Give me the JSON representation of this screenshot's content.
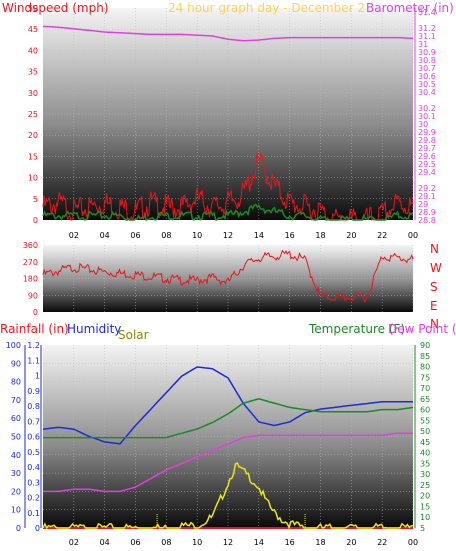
{
  "colors": {
    "windspeed": "#e8161c",
    "barometer": "#e040e0",
    "title": "#ffd34a",
    "rain": "#1b2bd6",
    "humidity": "#1b2bd6",
    "solar": "#e8e812",
    "temperature": "#1a8a22",
    "dewpoint": "#e040e0",
    "direction": "#e8161c",
    "gust": "#1a8a22",
    "tick": "#000000"
  },
  "chart_data": [
    {
      "type": "line",
      "title": "24 hour graph day - December 2",
      "labels": {
        "left": "Windspeed (mph)",
        "right": "Barometer (in)"
      },
      "x_tick_labels": [
        "02",
        "04",
        "06",
        "08",
        "10",
        "12",
        "14",
        "16",
        "18",
        "20",
        "22",
        "00"
      ],
      "left_axis": {
        "ylim": [
          0,
          50
        ],
        "ticks": [
          "0",
          "5",
          "10",
          "15",
          "20",
          "25",
          "30",
          "35",
          "40",
          "45",
          "50"
        ]
      },
      "right_axis": {
        "ylim": [
          28.8,
          31.45
        ],
        "ticks": [
          "28.8",
          "28.9",
          "29",
          "29.1",
          "29.2",
          "29.4",
          "29.5",
          "29.6",
          "29.7",
          "29.8",
          "29.9",
          "30",
          "30.1",
          "30.2",
          "30.4",
          "30.5",
          "30.6",
          "30.7",
          "30.8",
          "30.9",
          "31",
          "31.1",
          "31.2",
          "31.4"
        ]
      },
      "series": [
        {
          "role": "barometer",
          "axis": "right",
          "x": [
            0,
            1,
            2,
            3,
            4,
            5,
            6,
            7,
            8,
            9,
            10,
            11,
            12,
            13,
            14,
            15,
            16,
            17,
            18,
            19,
            20,
            21,
            22,
            23,
            24
          ],
          "values": [
            31.22,
            31.21,
            31.19,
            31.17,
            31.15,
            31.14,
            31.13,
            31.12,
            31.12,
            31.12,
            31.11,
            31.1,
            31.06,
            31.04,
            31.05,
            31.07,
            31.08,
            31.08,
            31.08,
            31.08,
            31.08,
            31.08,
            31.08,
            31.08,
            31.07
          ]
        },
        {
          "role": "windspeed",
          "axis": "left",
          "x": [
            0,
            1,
            2,
            3,
            4,
            5,
            6,
            7,
            8,
            9,
            10,
            11,
            12,
            13,
            14,
            15,
            16,
            17,
            18,
            19,
            20,
            21,
            22,
            23,
            24
          ],
          "values": [
            3,
            4,
            2,
            3,
            4,
            3,
            2,
            4,
            3,
            3,
            5,
            3,
            4,
            6,
            14,
            8,
            4,
            3,
            2,
            0,
            0,
            0,
            1,
            4,
            3
          ]
        },
        {
          "role": "gust",
          "axis": "left",
          "x": [
            0,
            1,
            2,
            3,
            4,
            5,
            6,
            7,
            8,
            9,
            10,
            11,
            12,
            13,
            14,
            15,
            16,
            17,
            18,
            19,
            20,
            21,
            22,
            23,
            24
          ],
          "values": [
            1,
            1,
            1,
            1,
            1,
            1,
            0,
            1,
            1,
            1,
            1,
            1,
            1,
            2,
            3,
            2,
            1,
            1,
            0,
            0,
            0,
            0,
            0,
            1,
            1
          ]
        }
      ]
    },
    {
      "type": "line",
      "labels": {
        "right": [
          "N",
          "W",
          "S",
          "E",
          "N"
        ]
      },
      "x_tick_labels": [],
      "left_axis": {
        "ylim": [
          0,
          360
        ],
        "ticks": [
          "0",
          "90",
          "180",
          "270",
          "360"
        ]
      },
      "series": [
        {
          "role": "direction",
          "x": [
            0,
            2,
            4,
            6,
            8,
            9,
            10,
            11,
            12,
            13,
            14,
            15,
            16,
            17,
            18,
            19,
            20,
            21,
            22,
            23,
            24
          ],
          "values": [
            200,
            240,
            215,
            200,
            180,
            170,
            170,
            185,
            160,
            250,
            290,
            300,
            310,
            280,
            80,
            80,
            80,
            80,
            300,
            290,
            280
          ]
        }
      ]
    },
    {
      "type": "line",
      "labels": {
        "rainfall": "Rainfall (in)",
        "humidity": "Humidity",
        "solar": "Solar",
        "temperature": "Temperature (F)",
        "dewpoint": "Dew Point ("
      },
      "x_tick_labels": [
        "02",
        "04",
        "06",
        "08",
        "10",
        "12",
        "14",
        "16",
        "18",
        "20",
        "22",
        "00"
      ],
      "left_axis_humidity": {
        "ylim": [
          0,
          100
        ],
        "ticks": [
          "0",
          "10",
          "20",
          "30",
          "40",
          "50",
          "60",
          "70",
          "80",
          "90",
          "100"
        ]
      },
      "left_axis_rain": {
        "ylim": [
          0,
          1.2
        ],
        "ticks": [
          "0",
          "0.1",
          "0.2",
          "0.3",
          "0.4",
          "0.5",
          "0.6",
          "0.7",
          "0.8",
          "0.9",
          "1",
          "1.1",
          "1.2"
        ]
      },
      "right_axis": {
        "ylim": [
          5,
          90
        ],
        "ticks": [
          "5",
          "10",
          "15",
          "20",
          "25",
          "30",
          "35",
          "40",
          "45",
          "50",
          "55",
          "60",
          "65",
          "70",
          "75",
          "80",
          "85",
          "90"
        ]
      },
      "series": [
        {
          "role": "humidity",
          "axis": "left_humidity",
          "x": [
            0,
            1,
            2,
            3,
            4,
            5,
            6,
            7,
            8,
            9,
            10,
            11,
            12,
            13,
            14,
            15,
            16,
            17,
            18,
            19,
            20,
            21,
            22,
            23,
            24
          ],
          "values": [
            54,
            55,
            54,
            50,
            47,
            46,
            56,
            65,
            74,
            83,
            88,
            87,
            82,
            68,
            58,
            56,
            58,
            63,
            65,
            66,
            67,
            68,
            69,
            69,
            69
          ]
        },
        {
          "role": "temperature",
          "axis": "right",
          "x": [
            0,
            1,
            2,
            3,
            4,
            5,
            6,
            7,
            8,
            9,
            10,
            11,
            12,
            13,
            14,
            15,
            16,
            17,
            18,
            19,
            20,
            21,
            22,
            23,
            24
          ],
          "values": [
            47,
            47,
            47,
            47,
            47,
            47,
            47,
            47,
            47,
            49,
            51,
            54,
            58,
            63,
            65,
            63,
            61,
            60,
            59,
            59,
            59,
            59,
            60,
            60,
            61
          ]
        },
        {
          "role": "dewpoint",
          "axis": "right",
          "x": [
            0,
            1,
            2,
            3,
            4,
            5,
            6,
            7,
            8,
            9,
            10,
            11,
            12,
            13,
            14,
            15,
            16,
            17,
            18,
            19,
            20,
            21,
            22,
            23,
            24
          ],
          "values": [
            22,
            22,
            23,
            23,
            22,
            22,
            24,
            28,
            32,
            35,
            38,
            41,
            44,
            47,
            48,
            48,
            48,
            48,
            48,
            48,
            48,
            48,
            48,
            49,
            49
          ]
        },
        {
          "role": "solar",
          "axis": "right",
          "x": [
            0,
            7.4,
            8,
            9,
            10,
            11,
            11.5,
            12,
            12.5,
            13,
            13.5,
            14,
            14.5,
            15,
            15.5,
            16,
            16.5,
            17,
            24
          ],
          "values": [
            5,
            5,
            5,
            6,
            6,
            10,
            18,
            26,
            34,
            31,
            28,
            24,
            17,
            12,
            9,
            7,
            6,
            5,
            5
          ]
        },
        {
          "role": "rainfall",
          "axis": "left_rain",
          "x": [
            0,
            24
          ],
          "values": [
            0,
            0
          ]
        }
      ]
    }
  ]
}
